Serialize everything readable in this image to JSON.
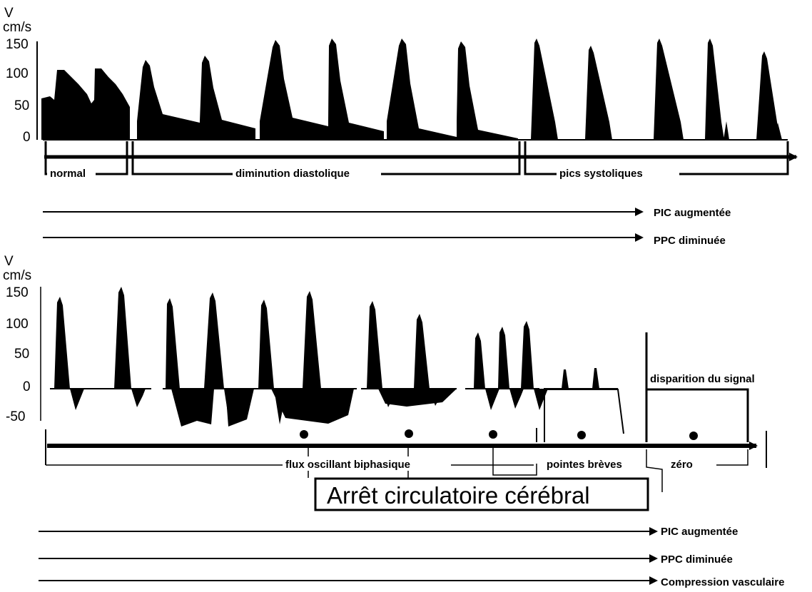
{
  "top_panel": {
    "unit_v": "V",
    "unit_cms": "cm/s",
    "y_ticks": [
      "150",
      "100",
      "50",
      "0"
    ],
    "phases": [
      "normal",
      "diminution diastolique",
      "pics systoliques"
    ],
    "arrows": [
      "PIC augmentée",
      "PPC diminuée"
    ]
  },
  "bottom_panel": {
    "unit_v": "V",
    "unit_cms": "cm/s",
    "y_ticks": [
      "150",
      "100",
      "50",
      "0",
      "-50"
    ],
    "phases": [
      "flux oscillant biphasique",
      "pointes brèves",
      "zéro"
    ],
    "signal_loss": "disparition du signal",
    "banner": "Arrêt circulatoire cérébral",
    "arrows": [
      "PIC augmentée",
      "PPC diminuée",
      "Compression vasculaire"
    ]
  }
}
